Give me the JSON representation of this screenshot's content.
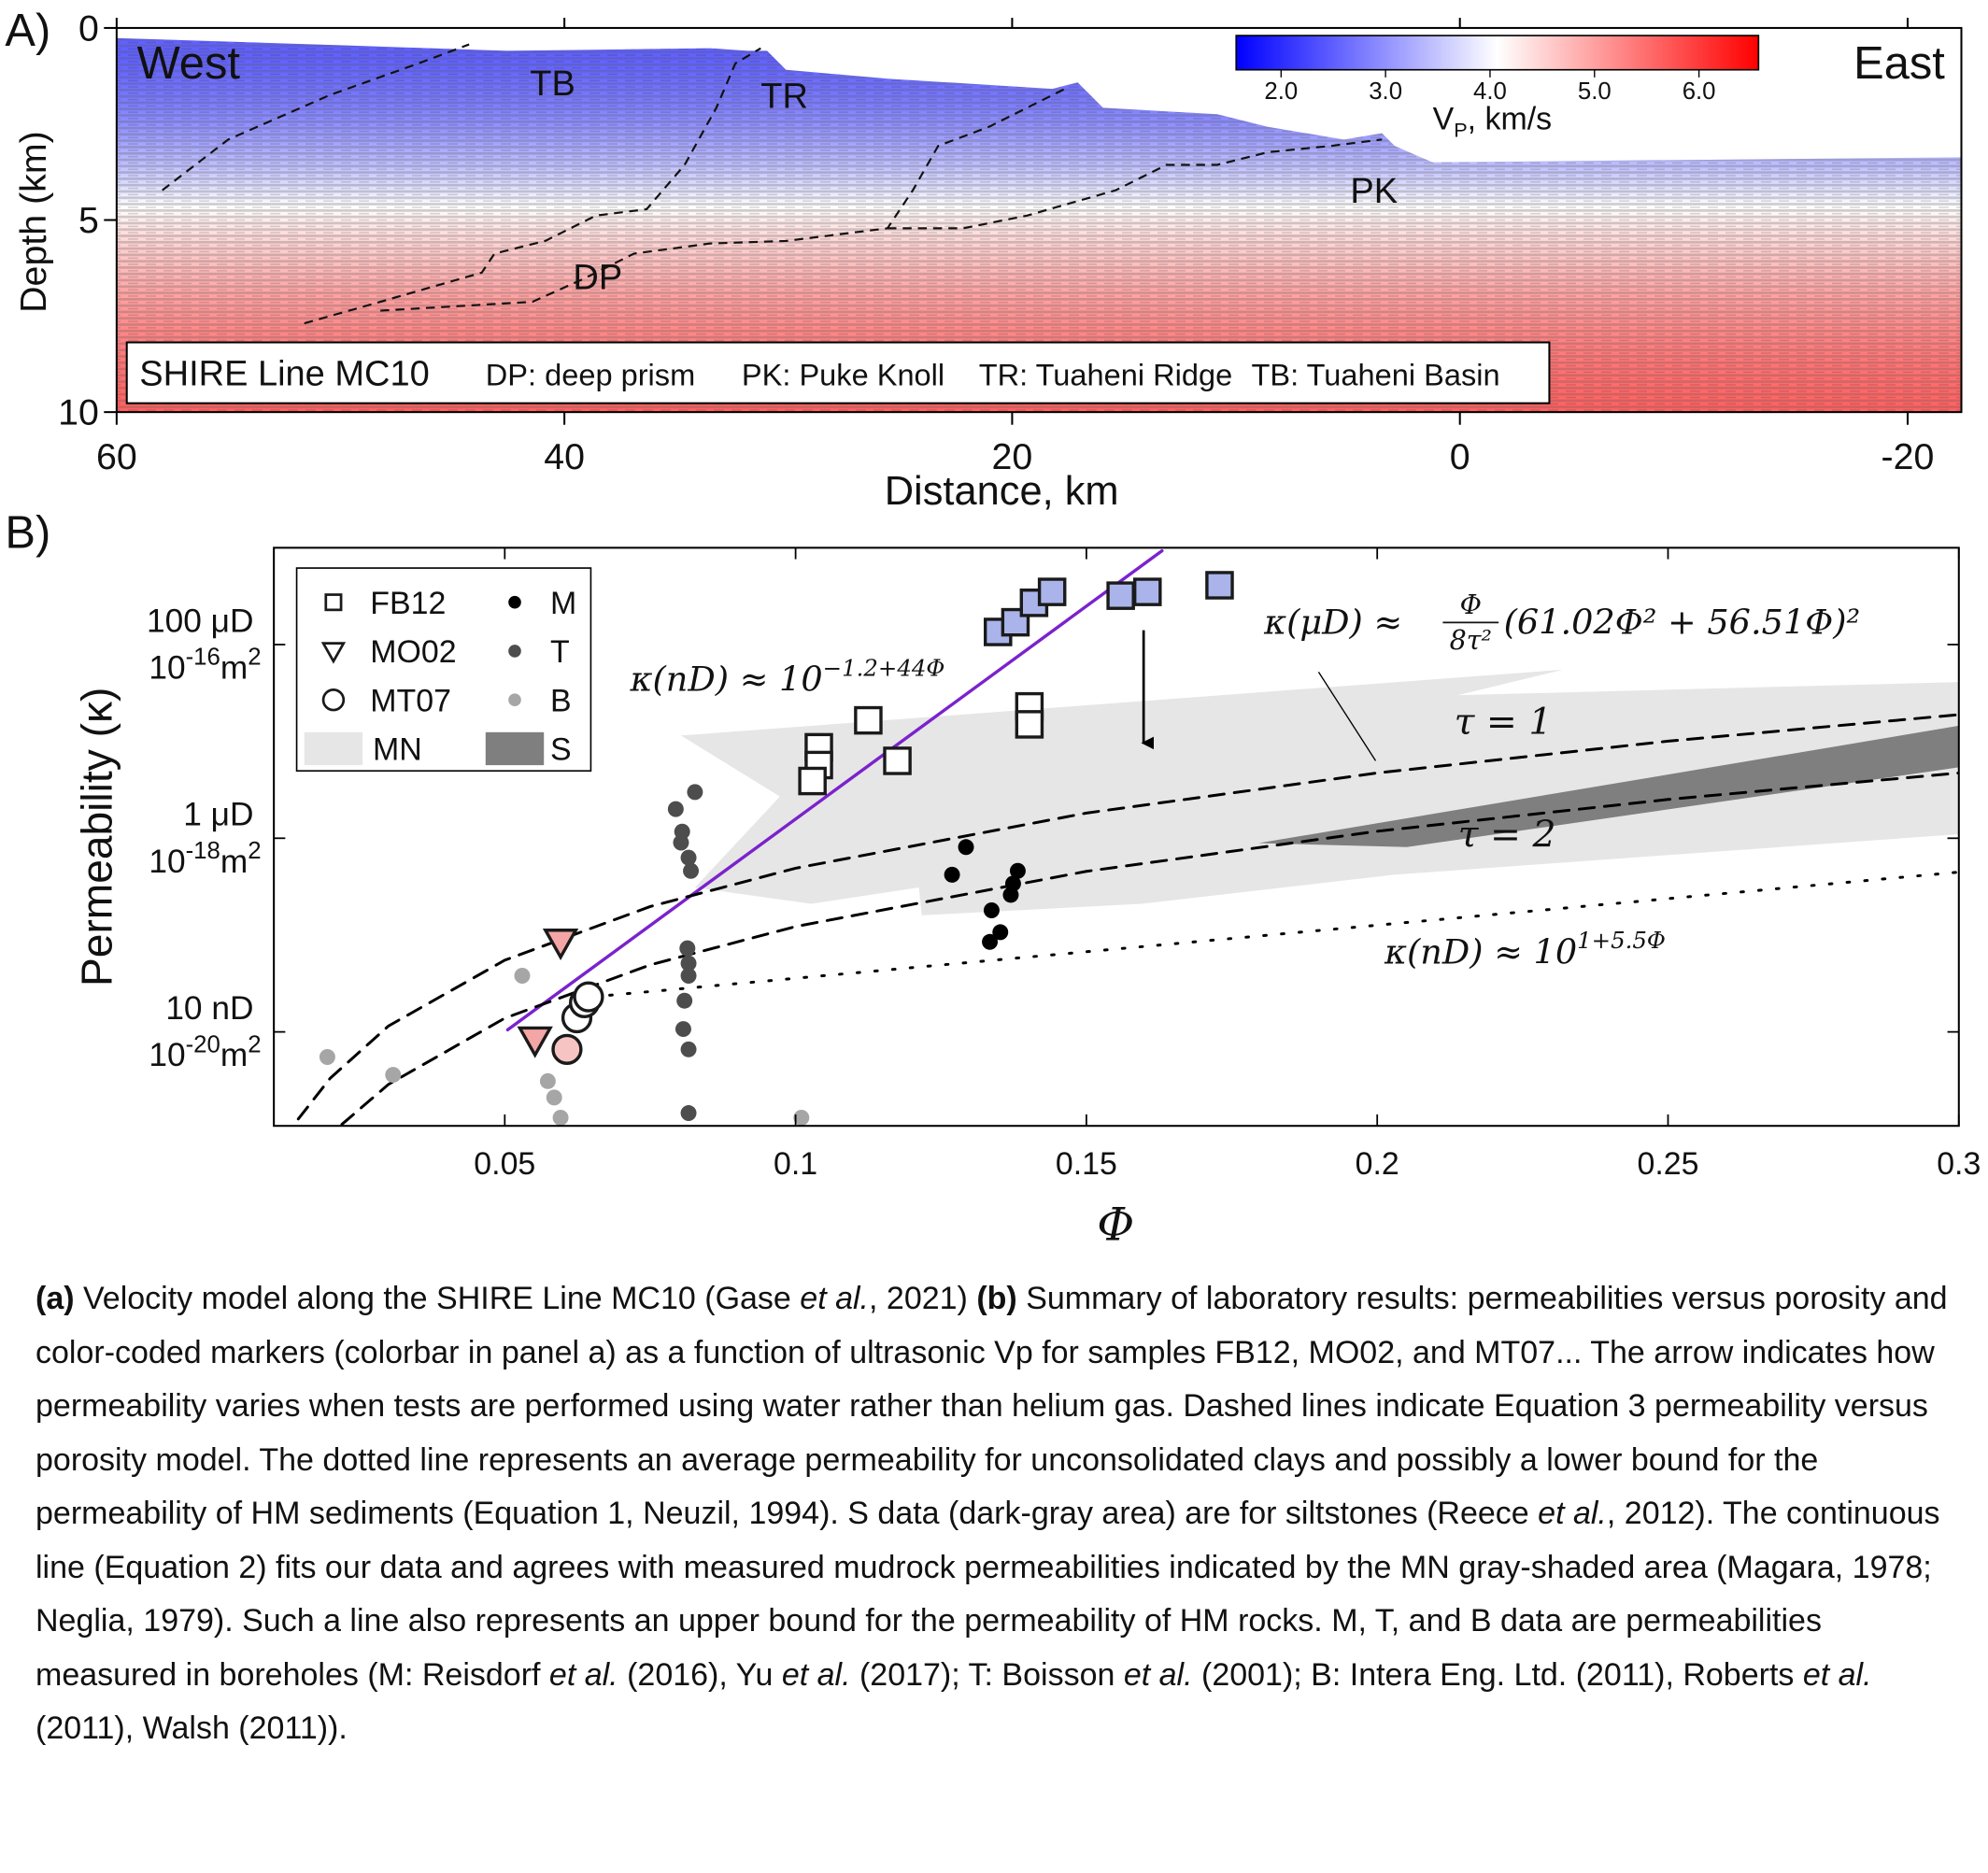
{
  "chart_data": [
    {
      "type": "image",
      "panel_label": "A)",
      "xlabel": "Distance, km",
      "ylabel": "Depth (km)",
      "xlim": [
        60,
        -22.4
      ],
      "xticks": [
        60,
        40,
        20,
        0,
        -20
      ],
      "ylim": [
        0,
        10
      ],
      "yticks": [
        0,
        5,
        10
      ],
      "annotations": [
        "West",
        "East",
        "TB",
        "TR",
        "PK",
        "DP"
      ],
      "legend_box": [
        "SHIRE Line MC10",
        "DP: deep prism",
        "PK: Puke Knoll",
        "TR: Tuaheni Ridge",
        "TB: Tuaheni Basin"
      ],
      "colorbar": {
        "label": [
          "V",
          "P",
          ", km/s"
        ],
        "clim": [
          1.57,
          6.57
        ],
        "ticks": [
          {
            "value": 2,
            "label": "2.0"
          },
          {
            "value": 3,
            "label": "3.0"
          },
          {
            "value": 4,
            "label": "4.0"
          },
          {
            "value": 5,
            "label": "5.0"
          },
          {
            "value": 6,
            "label": "6.0"
          }
        ],
        "colormap": [
          "#0000ff",
          "#ffffff",
          "#ff0000"
        ]
      }
    },
    {
      "type": "scatter",
      "panel_label": "B)",
      "xlabel": "Φ",
      "ylabel": "Permeability (κ)",
      "xlim": [
        0.0103,
        0.3
      ],
      "xticks": [
        0.05,
        0.1,
        0.15,
        0.2,
        0.25,
        0.3
      ],
      "yscale": "log",
      "ylim": [
        1.07e-21,
        1e-15
      ],
      "yticks": [
        {
          "value": 1e-16,
          "label": "100 μD",
          "label2": [
            "10",
            "-16",
            "m",
            "2"
          ]
        },
        {
          "value": 1e-18,
          "label": "1 μD",
          "label2": [
            "10",
            "-18",
            "m",
            "2"
          ]
        },
        {
          "value": 1e-20,
          "label": "10 nD",
          "label2": [
            "10",
            "-20",
            "m",
            "2"
          ]
        }
      ],
      "legend": "upper left",
      "series": [
        {
          "name": "FB12",
          "marker": "square",
          "color": "#1a1a1a",
          "x": [
            0.1348,
            0.1378,
            0.141,
            0.1441,
            0.1559,
            0.1605,
            0.1729,
            0.1125,
            0.1175,
            0.1402,
            0.1402,
            0.104,
            0.104,
            0.1029
          ],
          "values": [
            1.35e-16,
            1.7e-16,
            2.7e-16,
            3.5e-16,
            3.2e-16,
            3.5e-16,
            4.1e-16,
            1.65e-17,
            6.3e-18,
            2.3e-17,
            1.5e-17,
            8.7e-18,
            5.7e-18,
            3.9e-18
          ],
          "colors": [
            "#aab4ea",
            "#aab4ea",
            "#aab4ea",
            "#aab4ea",
            "#aab4ea",
            "#aab4ea",
            "#aab4ea",
            "#ffffff",
            "#ffffff",
            "#ffffff",
            "#ffffff",
            "#ffffff",
            "#ffffff",
            "#ffffff"
          ]
        },
        {
          "name": "MO02",
          "marker": "triangle",
          "color": "#1a1a1a",
          "x": [
            0.0596,
            0.0552
          ],
          "values": [
            8.5e-20,
            8.3e-21
          ],
          "colors": [
            "#f4a6a6",
            "#f4a6a6"
          ]
        },
        {
          "name": "MT07",
          "marker": "circle",
          "color": "#1a1a1a",
          "x": [
            0.0607,
            0.0624,
            0.0637,
            0.0644
          ],
          "values": [
            6.6e-21,
            1.4e-20,
            2e-20,
            2.3e-20
          ],
          "colors": [
            "#f7c4c4",
            "#ffffff",
            "#ffffff",
            "#ffffff"
          ]
        },
        {
          "name": "MN",
          "type": "area",
          "color": "#e6e6e6",
          "x": [
            0.0803,
            0.2319,
            0.2138,
            0.3,
            0.3,
            0.2029,
            0.1594,
            0.1217,
            0.1212,
            0.1027,
            0.0827,
            0.0973
          ],
          "values": [
            1.15e-17,
            5.5e-17,
            3e-17,
            4.1e-17,
            1.1e-18,
            4.2e-19,
            2.1e-19,
            1.6e-19,
            3.1e-19,
            2.1e-19,
            3.1e-19,
            2.7e-18
          ]
        },
        {
          "name": "M",
          "marker": "dot",
          "color": "#000000",
          "x": [
            0.1293,
            0.1269,
            0.1382,
            0.1374,
            0.137,
            0.1337,
            0.1352,
            0.1334
          ],
          "values": [
            8.1e-19,
            4.2e-19,
            4.6e-19,
            3.4e-19,
            2.6e-19,
            1.8e-19,
            1.07e-19,
            8.5e-20
          ]
        },
        {
          "name": "T",
          "marker": "dot",
          "color": "#4d4d4d",
          "x": [
            0.0827,
            0.0794,
            0.0805,
            0.0803,
            0.0816,
            0.082,
            0.0814,
            0.0816,
            0.0816,
            0.0809,
            0.0807,
            0.0816,
            0.0816
          ],
          "values": [
            3e-18,
            2e-18,
            1.17e-18,
            9e-19,
            6.3e-19,
            4.6e-19,
            7.3e-20,
            5.1e-20,
            3.8e-20,
            2.1e-20,
            1.07e-20,
            6.6e-21,
            1.45e-21
          ]
        },
        {
          "name": "B",
          "marker": "dot",
          "color": "#a6a6a6",
          "x": [
            0.0195,
            0.0308,
            0.053,
            0.0574,
            0.0585,
            0.0596,
            0.101
          ],
          "values": [
            5.5e-21,
            3.6e-21,
            3.8e-20,
            3.1e-21,
            2.1e-21,
            1.3e-21,
            1.3e-21
          ]
        },
        {
          "name": "S",
          "type": "area",
          "color": "#7f7f7f",
          "x": [
            0.1796,
            0.3,
            0.3,
            0.2051
          ],
          "values": [
            8.9e-19,
            1.45e-17,
            5.4e-18,
            8.1e-19
          ]
        }
      ],
      "curves": [
        {
          "style": "solid",
          "color": "#7b22cc",
          "x": [
            0.0505,
            0.163
          ],
          "values": [
            1.05e-20,
            9.3e-16
          ]
        },
        {
          "style": "dashed",
          "color": "#000000",
          "x": [
            0.0145,
            0.02,
            0.03,
            0.05,
            0.075,
            0.1,
            0.15,
            0.2,
            0.25,
            0.3
          ],
          "values": [
            1.26e-21,
            3.33e-21,
            1.15e-20,
            5.5e-20,
            1.97e-19,
            4.9e-19,
            1.82e-18,
            4.72e-18,
            1.006e-17,
            1.89e-17
          ]
        },
        {
          "style": "dashed",
          "color": "#000000",
          "x": [
            0.022,
            0.03,
            0.05,
            0.075,
            0.1,
            0.15,
            0.2,
            0.25,
            0.3
          ],
          "values": [
            1.11e-21,
            2.87e-21,
            1.385e-20,
            4.92e-20,
            1.225e-19,
            4.55e-19,
            1.18e-18,
            2.515e-18,
            4.72e-18
          ]
        },
        {
          "style": "dotted",
          "color": "#000000",
          "x": [
            0.065,
            0.3
          ],
          "values": [
            2.3e-20,
            4.47e-19
          ]
        }
      ],
      "annotations": {
        "purple_fit": [
          "κ(nD) ≈ 10",
          "−1.2+44Φ"
        ],
        "model": {
          "lhs": "κ(μD) ≈",
          "num": "Φ",
          "den": "8τ²",
          "rest": "(61.02Φ² + 56.51Φ)²"
        },
        "tau1": "τ = 1",
        "tau2": "τ = 2",
        "dotted_fit": [
          "κ(nD) ≈ 10",
          "1+5.5Φ"
        ]
      }
    }
  ],
  "caption": [
    {
      "text": "(a)",
      "style": "bold"
    },
    {
      "text": " Velocity model along the SHIRE Line MC10 (Gase ",
      "style": "normal"
    },
    {
      "text": "et al.",
      "style": "italic"
    },
    {
      "text": ", 2021) ",
      "style": "normal"
    },
    {
      "text": "(b)",
      "style": "bold"
    },
    {
      "text": " Summary of laboratory results: permeabilities versus porosity and color-coded markers (colorbar in panel a) as a function of ultrasonic Vp for samples FB12, MO02, and MT07... The arrow indicates how permeability varies when tests are performed using water rather than helium gas. Dashed lines indicate Equation 3 permeability versus porosity model. The dotted line represents an average permeability for unconsolidated clays and possibly a lower bound for the permeability of HM sediments (Equation 1, Neuzil, 1994). S data (dark-gray area) are for siltstones (Reece ",
      "style": "normal"
    },
    {
      "text": "et al.",
      "style": "italic"
    },
    {
      "text": ", 2012). The continuous line (Equation 2) fits our data and agrees with measured mudrock permeabilities indicated by the MN gray-shaded area (Magara, 1978; Neglia, 1979). Such a line also represents an upper bound for the permeability of HM rocks. M, T, and B data are permeabilities measured in boreholes (M: Reisdorf ",
      "style": "normal"
    },
    {
      "text": "et al.",
      "style": "italic"
    },
    {
      "text": " (2016), Yu ",
      "style": "normal"
    },
    {
      "text": "et al.",
      "style": "italic"
    },
    {
      "text": " (2017); T: Boisson ",
      "style": "normal"
    },
    {
      "text": "et al.",
      "style": "italic"
    },
    {
      "text": " (2001); B: Intera Eng. Ltd. (2011), Roberts ",
      "style": "normal"
    },
    {
      "text": "et al.",
      "style": "italic"
    },
    {
      "text": " (2011), Walsh (2011)).",
      "style": "normal"
    }
  ]
}
